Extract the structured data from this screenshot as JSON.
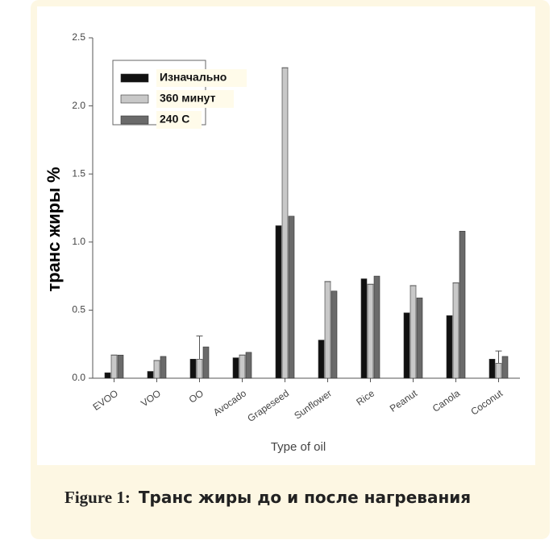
{
  "chart_data": {
    "type": "bar",
    "categories": [
      "EVOO",
      "VOO",
      "OO",
      "Avocado",
      "Grapeseed",
      "Sunflower",
      "Rice",
      "Peanut",
      "Canola",
      "Coconut"
    ],
    "series": [
      {
        "name": "Изначально",
        "color": "#111111",
        "values": [
          0.04,
          0.05,
          0.14,
          0.15,
          1.12,
          0.28,
          0.73,
          0.48,
          0.46,
          0.14
        ]
      },
      {
        "name": "360 минут",
        "color": "#c8c8c8",
        "values": [
          0.17,
          0.13,
          0.14,
          0.17,
          2.28,
          0.71,
          0.69,
          0.68,
          0.7,
          0.11
        ],
        "errors": [
          0,
          0,
          0.17,
          0,
          0,
          0,
          0,
          0,
          0,
          0.09
        ]
      },
      {
        "name": "240 С",
        "color": "#6a6a6a",
        "values": [
          0.17,
          0.16,
          0.23,
          0.19,
          1.19,
          0.64,
          0.75,
          0.59,
          1.08,
          0.16
        ]
      }
    ],
    "xlabel": "Type of oil",
    "ylabel": "транс жиры %",
    "ylim": [
      0,
      2.5
    ],
    "yticks": [
      {
        "value": 0,
        "label": "0.0"
      },
      0.5,
      {
        "value": 1,
        "label": "1.0"
      },
      1.5,
      {
        "value": 2,
        "label": "2.0"
      },
      2.5
    ],
    "legend": "upper left"
  },
  "caption": {
    "lead": "Figure 1:",
    "text": "Транс жиры до и после нагревания"
  }
}
